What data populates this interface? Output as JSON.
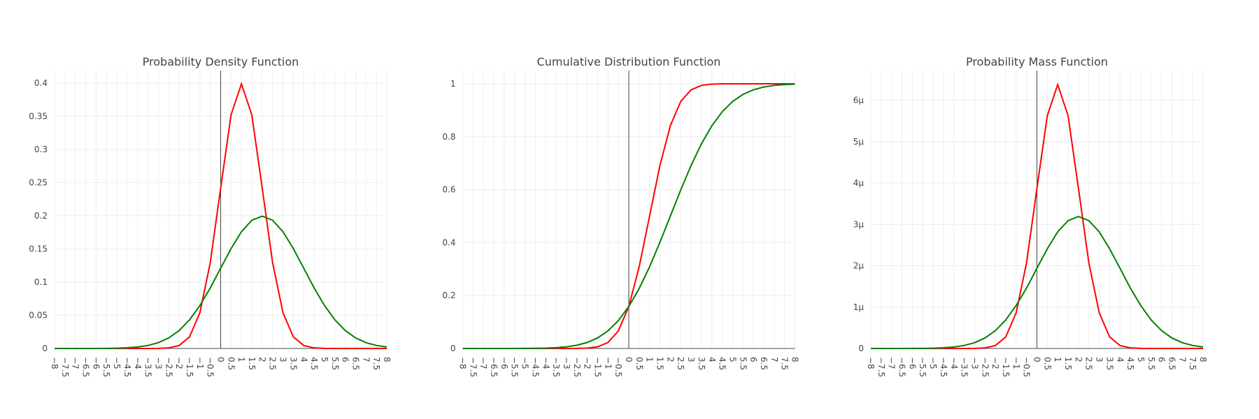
{
  "chart_data": [
    {
      "type": "line",
      "title": "Probability Density Function",
      "x": [
        -8,
        -7.5,
        -7,
        -6.5,
        -6,
        -5.5,
        -5,
        -4.5,
        -4,
        -3.5,
        -3,
        -2.5,
        -2,
        -1.5,
        -1,
        -0.5,
        0,
        0.5,
        1,
        1.5,
        2,
        2.5,
        3,
        3.5,
        4,
        4.5,
        5,
        5.5,
        6,
        6.5,
        7,
        7.5,
        8
      ],
      "xlim": [
        -8,
        8
      ],
      "xticks": [
        {
          "value": -8,
          "label": "−8"
        },
        {
          "value": -7.5,
          "label": "−7.5"
        },
        {
          "value": -7,
          "label": "−7"
        },
        {
          "value": -6.5,
          "label": "−6.5"
        },
        {
          "value": -6,
          "label": "−6"
        },
        {
          "value": -5.5,
          "label": "−5.5"
        },
        {
          "value": -5,
          "label": "−5"
        },
        {
          "value": -4.5,
          "label": "−4.5"
        },
        {
          "value": -4,
          "label": "−4"
        },
        {
          "value": -3.5,
          "label": "−3.5"
        },
        {
          "value": -3,
          "label": "−3"
        },
        {
          "value": -2.5,
          "label": "−2.5"
        },
        {
          "value": -2,
          "label": "−2"
        },
        {
          "value": -1.5,
          "label": "−1.5"
        },
        {
          "value": -1,
          "label": "−1"
        },
        {
          "value": -0.5,
          "label": "−0.5"
        },
        0,
        0.5,
        1,
        1.5,
        2,
        2.5,
        3,
        3.5,
        4,
        4.5,
        5,
        5.5,
        6,
        6.5,
        7,
        7.5,
        8
      ],
      "ylim": [
        0,
        0.419
      ],
      "yticks": [
        0,
        0.05,
        0.1,
        0.15,
        0.2,
        0.25,
        0.3,
        0.35,
        0.4
      ],
      "grid": true,
      "series": [
        {
          "color": "#ff0000",
          "values": [
            0,
            0,
            0,
            0,
            0,
            0,
            0,
            0,
            0,
            2e-05,
            0.00013,
            0.00087,
            0.00443,
            0.01753,
            0.05399,
            0.12952,
            0.24197,
            0.35207,
            0.39894,
            0.35207,
            0.24197,
            0.12952,
            0.05399,
            0.01753,
            0.00443,
            0.00087,
            0.00013,
            2e-05,
            0,
            0,
            0,
            0,
            0
          ]
        },
        {
          "color": "#008000",
          "values": [
            1e-06,
            2e-06,
            8e-06,
            2.4e-05,
            6.7e-05,
            0.000177,
            0.000436,
            0.001015,
            0.002216,
            0.004546,
            0.008764,
            0.015872,
            0.026995,
            0.04314,
            0.064759,
            0.091324,
            0.120985,
            0.150569,
            0.176033,
            0.193334,
            0.199471,
            0.193334,
            0.176033,
            0.150569,
            0.120985,
            0.091324,
            0.064759,
            0.04314,
            0.026995,
            0.015872,
            0.008764,
            0.004546,
            0.002216
          ]
        }
      ]
    },
    {
      "type": "line",
      "title": "Cumulative Distribution Function",
      "x": [
        -8,
        -7.5,
        -7,
        -6.5,
        -6,
        -5.5,
        -5,
        -4.5,
        -4,
        -3.5,
        -3,
        -2.5,
        -2,
        -1.5,
        -1,
        -0.5,
        0,
        0.5,
        1,
        1.5,
        2,
        2.5,
        3,
        3.5,
        4,
        4.5,
        5,
        5.5,
        6,
        6.5,
        7,
        7.5,
        8
      ],
      "xlim": [
        -8,
        8
      ],
      "xticks": [
        {
          "value": -8,
          "label": "−8"
        },
        {
          "value": -7.5,
          "label": "−7.5"
        },
        {
          "value": -7,
          "label": "−7"
        },
        {
          "value": -6.5,
          "label": "−6.5"
        },
        {
          "value": -6,
          "label": "−6"
        },
        {
          "value": -5.5,
          "label": "−5.5"
        },
        {
          "value": -5,
          "label": "−5"
        },
        {
          "value": -4.5,
          "label": "−4.5"
        },
        {
          "value": -4,
          "label": "−4"
        },
        {
          "value": -3.5,
          "label": "−3.5"
        },
        {
          "value": -3,
          "label": "−3"
        },
        {
          "value": -2.5,
          "label": "−2.5"
        },
        {
          "value": -2,
          "label": "−2"
        },
        {
          "value": -1.5,
          "label": "−1.5"
        },
        {
          "value": -1,
          "label": "−1"
        },
        {
          "value": -0.5,
          "label": "−0.5"
        },
        0,
        0.5,
        1,
        1.5,
        2,
        2.5,
        3,
        3.5,
        4,
        4.5,
        5,
        5.5,
        6,
        6.5,
        7,
        7.5,
        8
      ],
      "ylim": [
        0,
        1.05
      ],
      "yticks": [
        0,
        0.2,
        0.4,
        0.6,
        0.8,
        1
      ],
      "grid": true,
      "series": [
        {
          "color": "#ff0000",
          "values": [
            0,
            0,
            0,
            0,
            0,
            0,
            0,
            0,
            0,
            0,
            3e-05,
            0.00023,
            0.00135,
            0.00621,
            0.02275,
            0.06681,
            0.15866,
            0.30854,
            0.5,
            0.69146,
            0.84134,
            0.93319,
            0.97725,
            0.99379,
            0.99865,
            0.99977,
            0.99997,
            1,
            1,
            1,
            1,
            1,
            1
          ]
        },
        {
          "color": "#008000",
          "values": [
            0,
            1e-06,
            3e-06,
            1.1e-05,
            3.2e-05,
            8.8e-05,
            0.000233,
            0.000577,
            0.00135,
            0.00298,
            0.00621,
            0.01222,
            0.02275,
            0.04006,
            0.06681,
            0.10565,
            0.15866,
            0.22663,
            0.30854,
            0.40129,
            0.5,
            0.59871,
            0.69146,
            0.77337,
            0.84134,
            0.89435,
            0.93319,
            0.95994,
            0.97725,
            0.98778,
            0.99379,
            0.99702,
            0.99865
          ]
        }
      ]
    },
    {
      "type": "line",
      "title": "Probability Mass Function",
      "x": [
        -8,
        -7.5,
        -7,
        -6.5,
        -6,
        -5.5,
        -5,
        -4.5,
        -4,
        -3.5,
        -3,
        -2.5,
        -2,
        -1.5,
        -1,
        -0.5,
        0,
        0.5,
        1,
        1.5,
        2,
        2.5,
        3,
        3.5,
        4,
        4.5,
        5,
        5.5,
        6,
        6.5,
        7,
        7.5,
        8
      ],
      "xlim": [
        -8,
        8
      ],
      "xticks": [
        {
          "value": -8,
          "label": "−8"
        },
        {
          "value": -7.5,
          "label": "−7.5"
        },
        {
          "value": -7,
          "label": "−7"
        },
        {
          "value": -6.5,
          "label": "−6.5"
        },
        {
          "value": -6,
          "label": "−6"
        },
        {
          "value": -5.5,
          "label": "−5.5"
        },
        {
          "value": -5,
          "label": "−5"
        },
        {
          "value": -4.5,
          "label": "−4.5"
        },
        {
          "value": -4,
          "label": "−4"
        },
        {
          "value": -3.5,
          "label": "−3.5"
        },
        {
          "value": -3,
          "label": "−3"
        },
        {
          "value": -2.5,
          "label": "−2.5"
        },
        {
          "value": -2,
          "label": "−2"
        },
        {
          "value": -1.5,
          "label": "−1.5"
        },
        {
          "value": -1,
          "label": "−1"
        },
        {
          "value": -0.5,
          "label": "−0.5"
        },
        0,
        0.5,
        1,
        1.5,
        2,
        2.5,
        3,
        3.5,
        4,
        4.5,
        5,
        5.5,
        6,
        6.5,
        7,
        7.5,
        8
      ],
      "ylim": [
        0,
        6.72e-06
      ],
      "yticks": [
        0,
        {
          "value": 1e-06,
          "label": "1μ"
        },
        {
          "value": 2e-06,
          "label": "2μ"
        },
        {
          "value": 3e-06,
          "label": "3μ"
        },
        {
          "value": 4e-06,
          "label": "4μ"
        },
        {
          "value": 5e-06,
          "label": "5μ"
        },
        {
          "value": 6e-06,
          "label": "6μ"
        }
      ],
      "grid": true,
      "series": [
        {
          "color": "#ff0000",
          "values": [
            0,
            0,
            0,
            0,
            0,
            0,
            0,
            0,
            0,
            0,
            2.1e-09,
            1.4e-08,
            7.1e-08,
            2.8e-07,
            8.64e-07,
            2.07e-06,
            3.87e-06,
            5.63e-06,
            6.38e-06,
            5.63e-06,
            3.87e-06,
            2.07e-06,
            8.64e-07,
            2.8e-07,
            7.1e-08,
            1.4e-08,
            2.1e-09,
            0,
            0,
            0,
            0,
            0,
            0
          ]
        },
        {
          "color": "#008000",
          "values": [
            0,
            0,
            0,
            0,
            1.1e-09,
            2.8e-09,
            7e-09,
            1.62e-08,
            3.55e-08,
            7.27e-08,
            1.4e-07,
            2.54e-07,
            4.32e-07,
            6.9e-07,
            1.04e-06,
            1.46e-06,
            1.94e-06,
            2.41e-06,
            2.82e-06,
            3.09e-06,
            3.19e-06,
            3.09e-06,
            2.82e-06,
            2.41e-06,
            1.94e-06,
            1.46e-06,
            1.04e-06,
            6.9e-07,
            4.32e-07,
            2.54e-07,
            1.4e-07,
            7.27e-08,
            3.55e-08
          ]
        }
      ]
    }
  ]
}
